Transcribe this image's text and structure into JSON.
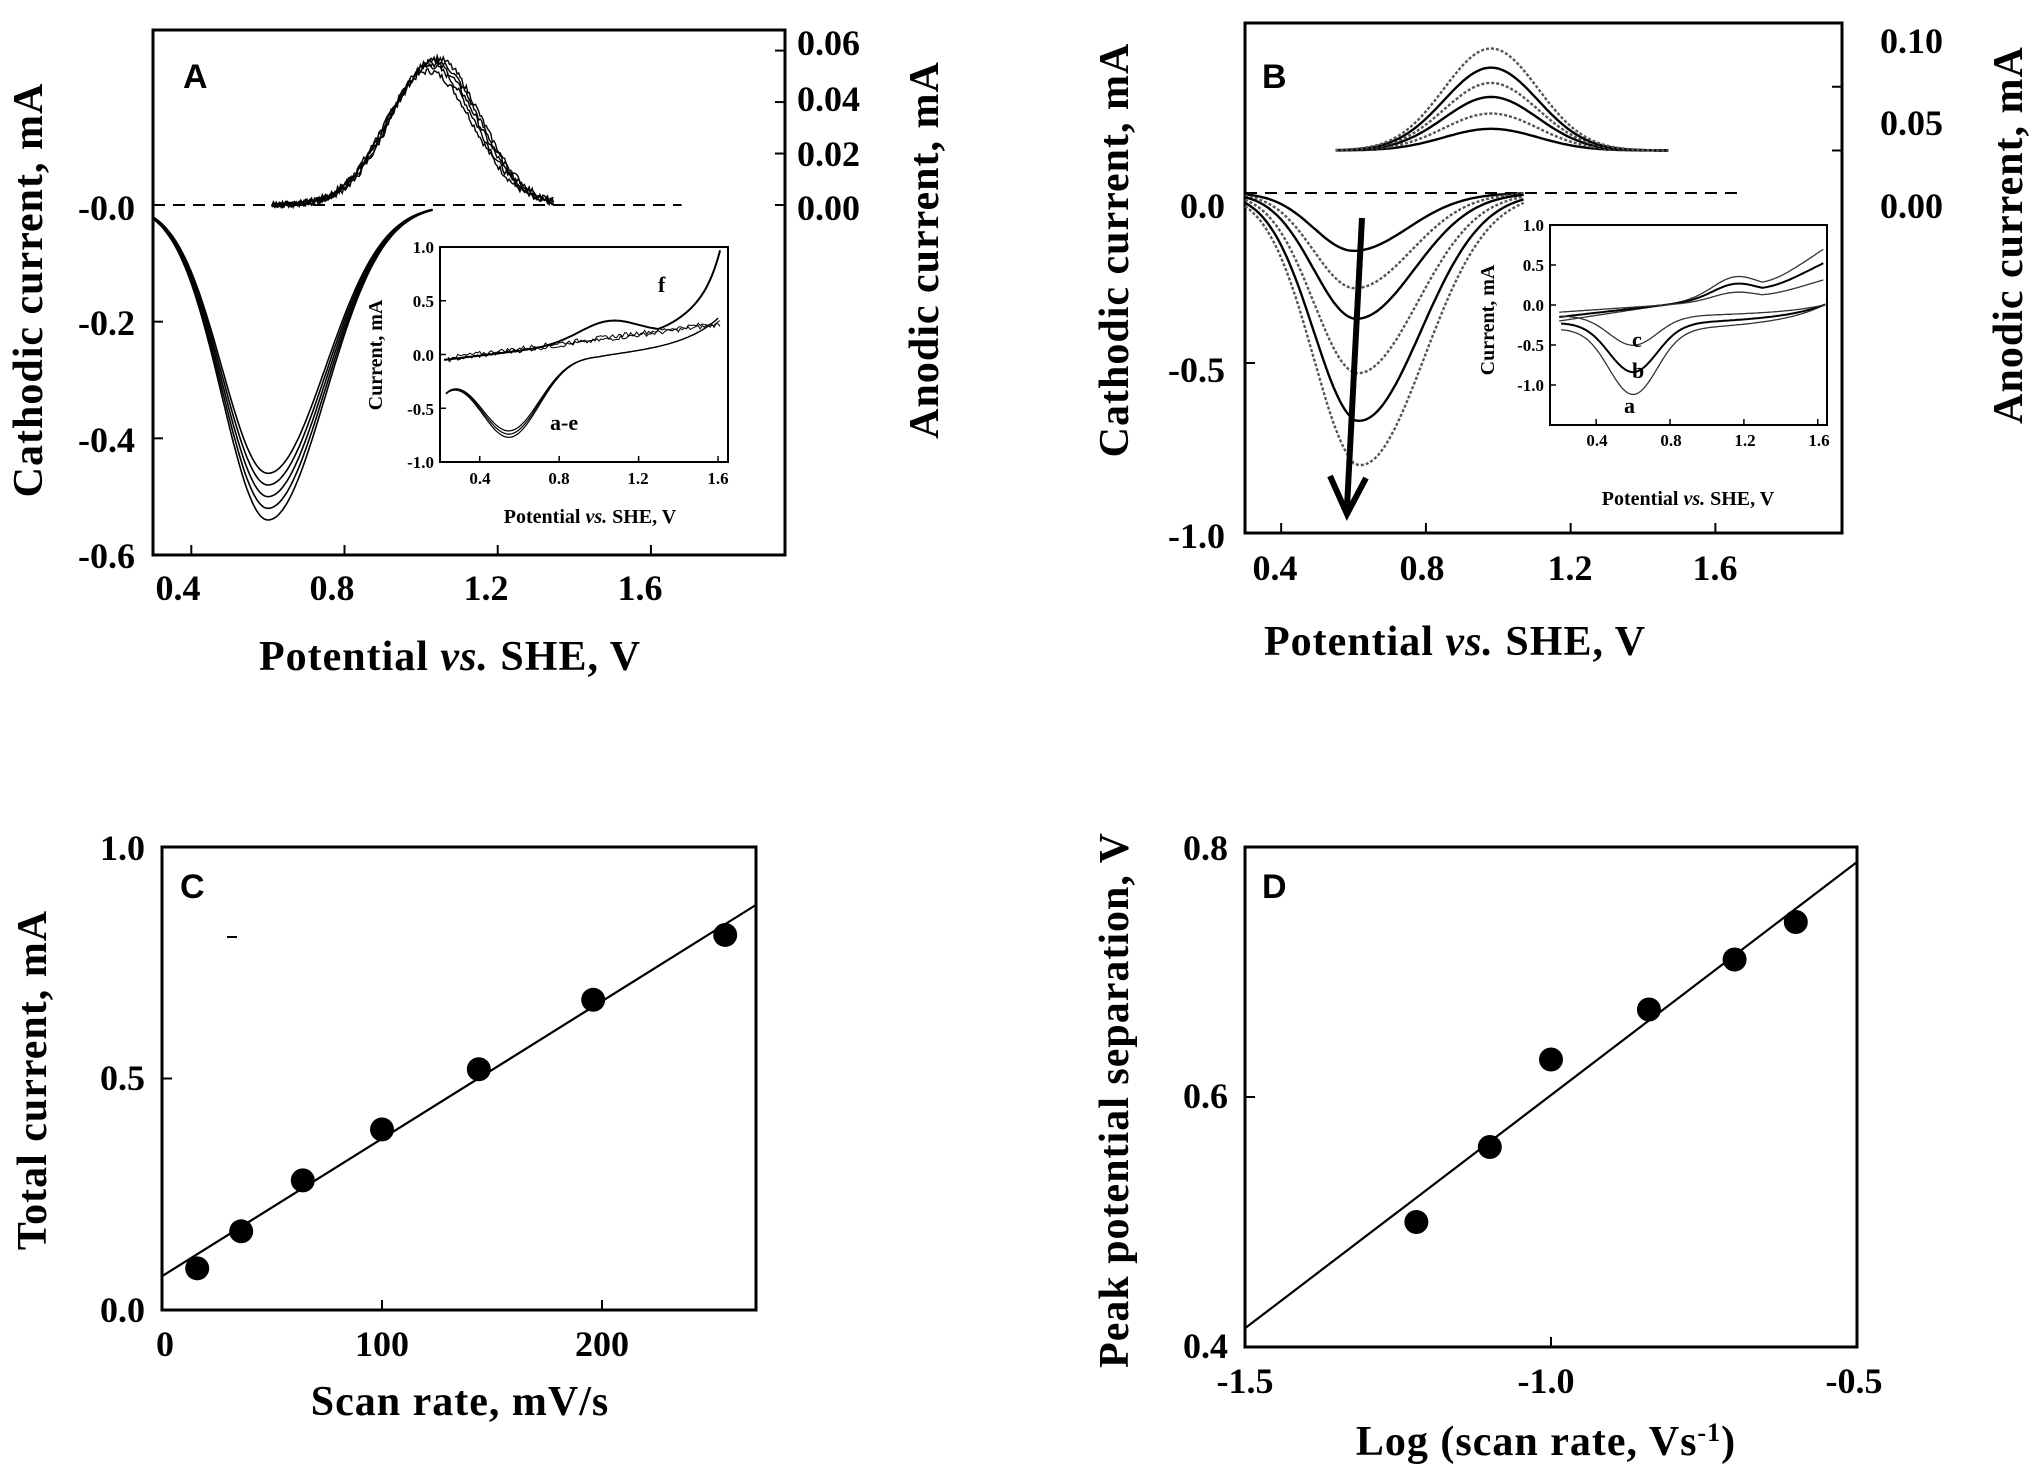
{
  "chart_data": [
    {
      "id": "A",
      "type": "line",
      "panel_label": "A",
      "xlabel_parts": [
        "Potential ",
        "vs.",
        " SHE, V"
      ],
      "ylabel_left": "Cathodic current, mA",
      "ylabel_right": "Anodic current, mA",
      "xlim": [
        0.3,
        1.95
      ],
      "ylim_left": [
        -0.6,
        0.3
      ],
      "ylim_right": [
        -0.136,
        0.068
      ],
      "xticks": [
        "0.4",
        "0.8",
        "1.2",
        "1.6"
      ],
      "yticks_left": [
        "-0.0",
        "-0.2",
        "-0.4",
        "-0.6"
      ],
      "yticks_right": [
        "0.00",
        "0.02",
        "0.04",
        "0.06"
      ],
      "cathodic_peak_potential": 0.6,
      "cathodic_peak_currents": [
        -0.46,
        -0.48,
        -0.5,
        -0.52,
        -0.54
      ],
      "anodic_peak_potential": 1.03,
      "anodic_peak_currents": [
        0.052,
        0.054,
        0.055,
        0.056,
        0.057
      ],
      "inset": {
        "xlabel_parts": [
          "Potential ",
          "vs.",
          " SHE, V"
        ],
        "ylabel": "Current, mA",
        "xlim": [
          0.2,
          1.65
        ],
        "ylim": [
          -1.0,
          1.0
        ],
        "xticks": [
          "0.4",
          "0.8",
          "1.2",
          "1.6"
        ],
        "yticks": [
          "1.0",
          "0.5",
          "0.0",
          "-0.5",
          "-1.0"
        ],
        "curve_labels": [
          "f",
          "a-e"
        ]
      }
    },
    {
      "id": "B",
      "type": "line",
      "panel_label": "B",
      "xlabel_parts": [
        "Potential ",
        "vs.",
        " SHE, V"
      ],
      "ylabel_left": "Cathodic current, mA",
      "ylabel_right": "Anodic current, mA",
      "xlim": [
        0.3,
        1.95
      ],
      "ylim_left": [
        -1.0,
        0.5
      ],
      "ylim_right": [
        -0.3,
        0.1
      ],
      "xticks": [
        "0.4",
        "0.8",
        "1.2",
        "1.6"
      ],
      "yticks_left": [
        "0.0",
        "-0.5",
        "-1.0"
      ],
      "yticks_right": [
        "0.00",
        "0.05",
        "0.10"
      ],
      "cathodic_peak_potential": 0.6,
      "cathodic_peak_currents": [
        -0.17,
        -0.28,
        -0.37,
        -0.53,
        -0.67,
        -0.8
      ],
      "anodic_peak_potential": 0.98,
      "anodic_peak_currents": [
        0.017,
        0.029,
        0.042,
        0.053,
        0.065,
        0.08
      ],
      "inset": {
        "xlabel_parts": [
          "Potential ",
          "vs.",
          " SHE, V"
        ],
        "ylabel": "Current, mA",
        "xlim": [
          0.15,
          1.65
        ],
        "ylim": [
          -1.5,
          1.0
        ],
        "xticks": [
          "0.4",
          "0.8",
          "1.2",
          "1.6"
        ],
        "yticks": [
          "1.0",
          "0.5",
          "0.0",
          "-0.5",
          "-1.0"
        ],
        "curve_labels": [
          "c",
          "b",
          "a"
        ]
      }
    },
    {
      "id": "C",
      "type": "scatter",
      "panel_label": "C",
      "xlabel": "Scan rate, mV/s",
      "ylabel": "Total current, mA",
      "xlim": [
        0,
        270
      ],
      "ylim": [
        0,
        1.0
      ],
      "xticks": [
        "0",
        "100",
        "200"
      ],
      "yticks": [
        "1.0",
        "0.5",
        "0.0"
      ],
      "points": [
        [
          16,
          0.09
        ],
        [
          36,
          0.17
        ],
        [
          64,
          0.28
        ],
        [
          100,
          0.39
        ],
        [
          144,
          0.52
        ],
        [
          196,
          0.67
        ],
        [
          256,
          0.81
        ]
      ],
      "fit": [
        [
          0,
          0.073
        ],
        [
          270,
          0.875
        ]
      ]
    },
    {
      "id": "D",
      "type": "scatter",
      "panel_label": "D",
      "xlabel_parts": [
        "Log (scan rate, Vs",
        "-1",
        ")"
      ],
      "ylabel": "Peak potential separation, V",
      "xlim": [
        -1.5,
        -0.5
      ],
      "ylim": [
        0.4,
        0.8
      ],
      "xticks": [
        "-1.5",
        "-1.0",
        "-0.5"
      ],
      "yticks": [
        "0.8",
        "0.6",
        "0.4"
      ],
      "points": [
        [
          -1.22,
          0.5
        ],
        [
          -1.1,
          0.56
        ],
        [
          -1.0,
          0.63
        ],
        [
          -0.84,
          0.67
        ],
        [
          -0.7,
          0.71
        ],
        [
          -0.6,
          0.74
        ]
      ],
      "fit": [
        [
          -1.5,
          0.415
        ],
        [
          -0.5,
          0.788
        ]
      ]
    }
  ]
}
